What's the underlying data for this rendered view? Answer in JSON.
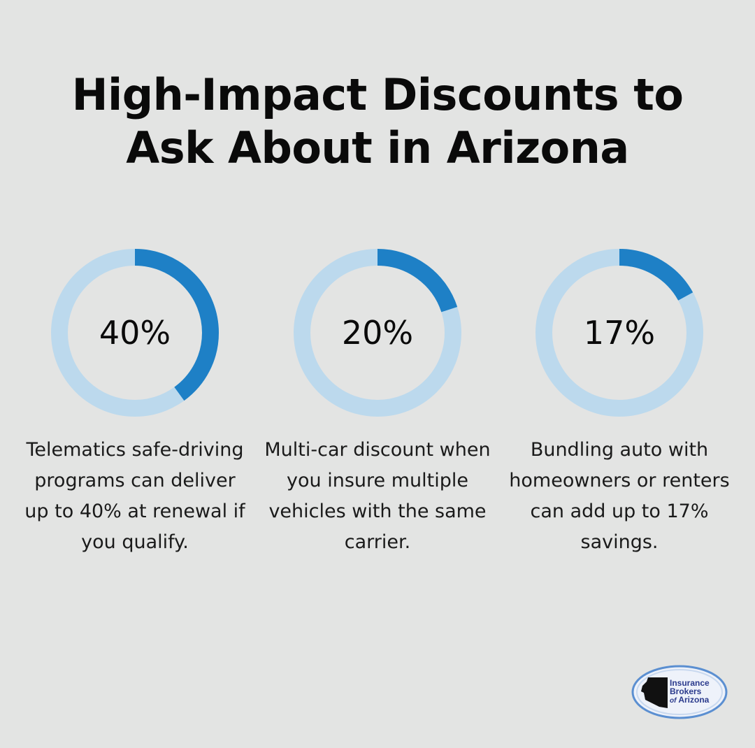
{
  "title": {
    "line1": "High-Impact Discounts to",
    "line2": "Ask About in Arizona"
  },
  "colors": {
    "background": "#e3e4e3",
    "ring_track": "#bcd9ed",
    "ring_fill": "#1e80c6",
    "logo_blue": "#2a3a8c"
  },
  "stats": [
    {
      "value_label": "40%",
      "percent": 40,
      "description": "Telematics safe-driving programs can deliver up to 40% at renewal if you qualify."
    },
    {
      "value_label": "20%",
      "percent": 20,
      "description": "Multi-car discount when you insure multiple vehicles with the same carrier."
    },
    {
      "value_label": "17%",
      "percent": 17,
      "description": "Bundling auto with homeowners or renters can add up to 17% savings."
    }
  ],
  "logo": {
    "line1": "Insurance",
    "line2": "Brokers",
    "line3_of": "of",
    "line3_name": "Arizona"
  }
}
